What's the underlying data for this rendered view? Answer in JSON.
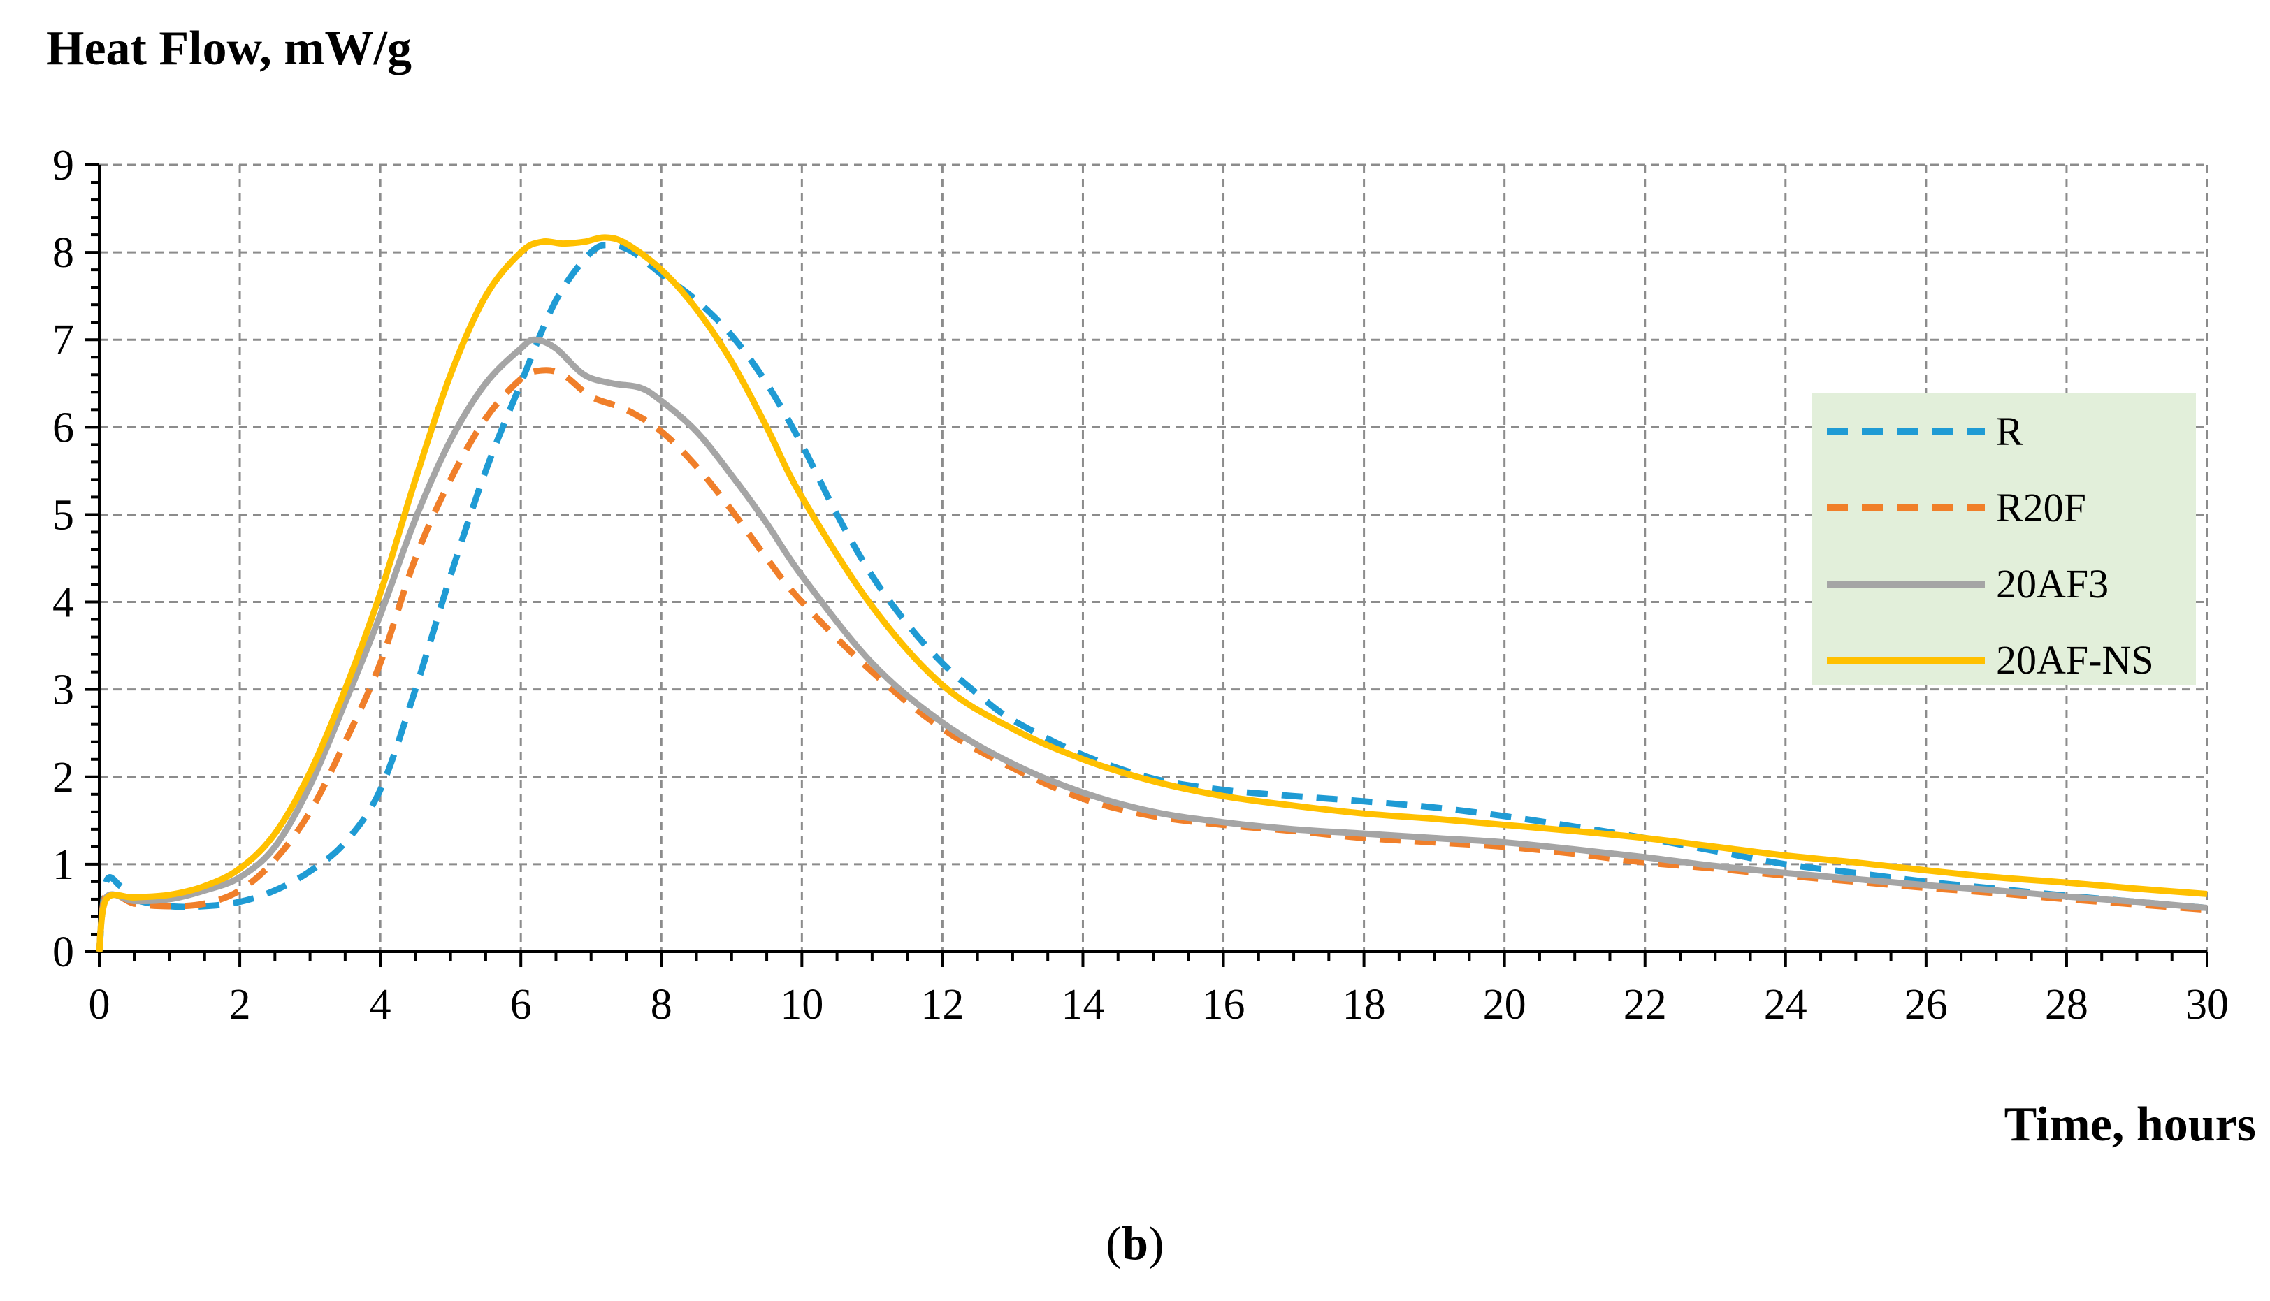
{
  "chart_data": {
    "type": "line",
    "title": "",
    "ylabel": "Heat Flow, mW/g",
    "xlabel": "Time, hours",
    "caption_open": "(",
    "caption_letter": "b",
    "caption_close": ")",
    "xlim": [
      0,
      30
    ],
    "ylim": [
      0,
      9
    ],
    "xticks": [
      0,
      2,
      4,
      6,
      8,
      10,
      12,
      14,
      16,
      18,
      20,
      22,
      24,
      26,
      28,
      30
    ],
    "yticks": [
      0,
      1,
      2,
      3,
      4,
      5,
      6,
      7,
      8,
      9
    ],
    "grid": true,
    "legend_position": "right",
    "legend_background": "#e2efda",
    "series": [
      {
        "name": "R",
        "color": "#1f9bd4",
        "style": "dashed",
        "points": [
          [
            0,
            0
          ],
          [
            0.1,
            0.8
          ],
          [
            0.3,
            0.75
          ],
          [
            0.5,
            0.6
          ],
          [
            1,
            0.52
          ],
          [
            1.5,
            0.52
          ],
          [
            2,
            0.57
          ],
          [
            2.5,
            0.7
          ],
          [
            3,
            0.92
          ],
          [
            3.5,
            1.25
          ],
          [
            4,
            1.85
          ],
          [
            4.5,
            3.0
          ],
          [
            5,
            4.3
          ],
          [
            5.5,
            5.5
          ],
          [
            6,
            6.5
          ],
          [
            6.5,
            7.45
          ],
          [
            7,
            8.0
          ],
          [
            7.3,
            8.08
          ],
          [
            7.6,
            8.0
          ],
          [
            8,
            7.75
          ],
          [
            8.5,
            7.45
          ],
          [
            9,
            7.05
          ],
          [
            9.5,
            6.5
          ],
          [
            10,
            5.8
          ],
          [
            10.5,
            5.0
          ],
          [
            11,
            4.3
          ],
          [
            11.5,
            3.75
          ],
          [
            12,
            3.3
          ],
          [
            12.5,
            2.95
          ],
          [
            13,
            2.65
          ],
          [
            14,
            2.25
          ],
          [
            15,
            1.98
          ],
          [
            16,
            1.85
          ],
          [
            17,
            1.78
          ],
          [
            18,
            1.72
          ],
          [
            19,
            1.65
          ],
          [
            20,
            1.55
          ],
          [
            21,
            1.43
          ],
          [
            22,
            1.3
          ],
          [
            23,
            1.15
          ],
          [
            24,
            1.0
          ],
          [
            25,
            0.9
          ],
          [
            26,
            0.8
          ],
          [
            27,
            0.72
          ],
          [
            28,
            0.64
          ],
          [
            29,
            0.57
          ],
          [
            30,
            0.5
          ]
        ]
      },
      {
        "name": "R20F",
        "color": "#f07f2a",
        "style": "dashed",
        "points": [
          [
            0,
            0
          ],
          [
            0.1,
            0.65
          ],
          [
            0.5,
            0.55
          ],
          [
            1,
            0.52
          ],
          [
            1.5,
            0.55
          ],
          [
            2,
            0.7
          ],
          [
            2.5,
            1.05
          ],
          [
            3,
            1.6
          ],
          [
            3.5,
            2.4
          ],
          [
            4,
            3.3
          ],
          [
            4.5,
            4.5
          ],
          [
            5,
            5.4
          ],
          [
            5.5,
            6.1
          ],
          [
            6,
            6.55
          ],
          [
            6.3,
            6.65
          ],
          [
            6.6,
            6.6
          ],
          [
            7,
            6.35
          ],
          [
            7.5,
            6.2
          ],
          [
            8,
            5.95
          ],
          [
            8.5,
            5.55
          ],
          [
            9,
            5.05
          ],
          [
            9.5,
            4.5
          ],
          [
            10,
            4.0
          ],
          [
            11,
            3.2
          ],
          [
            12,
            2.55
          ],
          [
            13,
            2.1
          ],
          [
            14,
            1.75
          ],
          [
            15,
            1.55
          ],
          [
            16,
            1.45
          ],
          [
            17,
            1.38
          ],
          [
            18,
            1.3
          ],
          [
            19,
            1.25
          ],
          [
            20,
            1.2
          ],
          [
            21,
            1.12
          ],
          [
            22,
            1.02
          ],
          [
            23,
            0.95
          ],
          [
            24,
            0.87
          ],
          [
            25,
            0.8
          ],
          [
            26,
            0.73
          ],
          [
            27,
            0.67
          ],
          [
            28,
            0.6
          ],
          [
            29,
            0.54
          ],
          [
            30,
            0.48
          ]
        ]
      },
      {
        "name": "20AF3",
        "color": "#a5a5a5",
        "style": "solid",
        "points": [
          [
            0,
            0
          ],
          [
            0.1,
            0.62
          ],
          [
            0.5,
            0.58
          ],
          [
            1,
            0.6
          ],
          [
            1.5,
            0.7
          ],
          [
            2,
            0.85
          ],
          [
            2.5,
            1.2
          ],
          [
            3,
            1.9
          ],
          [
            3.5,
            2.85
          ],
          [
            4,
            3.85
          ],
          [
            4.5,
            4.95
          ],
          [
            5,
            5.85
          ],
          [
            5.5,
            6.5
          ],
          [
            6,
            6.9
          ],
          [
            6.2,
            7.0
          ],
          [
            6.5,
            6.9
          ],
          [
            6.9,
            6.6
          ],
          [
            7.3,
            6.5
          ],
          [
            7.7,
            6.45
          ],
          [
            8,
            6.3
          ],
          [
            8.5,
            5.95
          ],
          [
            9,
            5.45
          ],
          [
            9.5,
            4.9
          ],
          [
            10,
            4.3
          ],
          [
            11,
            3.3
          ],
          [
            12,
            2.62
          ],
          [
            13,
            2.15
          ],
          [
            14,
            1.82
          ],
          [
            15,
            1.6
          ],
          [
            16,
            1.48
          ],
          [
            17,
            1.4
          ],
          [
            18,
            1.35
          ],
          [
            19,
            1.3
          ],
          [
            20,
            1.25
          ],
          [
            21,
            1.17
          ],
          [
            22,
            1.08
          ],
          [
            23,
            0.98
          ],
          [
            24,
            0.9
          ],
          [
            25,
            0.83
          ],
          [
            26,
            0.76
          ],
          [
            27,
            0.7
          ],
          [
            28,
            0.63
          ],
          [
            29,
            0.57
          ],
          [
            30,
            0.5
          ]
        ]
      },
      {
        "name": "20AF-NS",
        "color": "#ffc000",
        "style": "solid",
        "points": [
          [
            0,
            0
          ],
          [
            0.1,
            0.6
          ],
          [
            0.5,
            0.62
          ],
          [
            1,
            0.65
          ],
          [
            1.5,
            0.75
          ],
          [
            2,
            0.95
          ],
          [
            2.5,
            1.35
          ],
          [
            3,
            2.05
          ],
          [
            3.5,
            3.0
          ],
          [
            4,
            4.1
          ],
          [
            4.5,
            5.4
          ],
          [
            5,
            6.6
          ],
          [
            5.5,
            7.5
          ],
          [
            6,
            8.0
          ],
          [
            6.3,
            8.12
          ],
          [
            6.6,
            8.1
          ],
          [
            6.9,
            8.12
          ],
          [
            7.2,
            8.17
          ],
          [
            7.5,
            8.1
          ],
          [
            8,
            7.8
          ],
          [
            8.5,
            7.35
          ],
          [
            9,
            6.75
          ],
          [
            9.5,
            6.0
          ],
          [
            10,
            5.2
          ],
          [
            11,
            3.95
          ],
          [
            12,
            3.05
          ],
          [
            13,
            2.55
          ],
          [
            14,
            2.2
          ],
          [
            15,
            1.95
          ],
          [
            16,
            1.78
          ],
          [
            17,
            1.67
          ],
          [
            18,
            1.58
          ],
          [
            19,
            1.52
          ],
          [
            20,
            1.45
          ],
          [
            21,
            1.38
          ],
          [
            22,
            1.3
          ],
          [
            23,
            1.2
          ],
          [
            24,
            1.1
          ],
          [
            25,
            1.02
          ],
          [
            26,
            0.93
          ],
          [
            27,
            0.85
          ],
          [
            28,
            0.79
          ],
          [
            29,
            0.72
          ],
          [
            30,
            0.66
          ]
        ]
      }
    ]
  }
}
